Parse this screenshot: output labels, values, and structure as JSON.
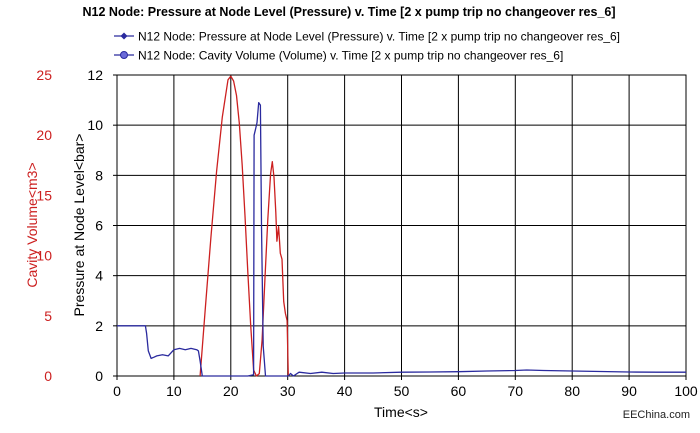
{
  "chart_data": {
    "type": "line",
    "title": "N12 Node: Pressure at Node Level (Pressure) v. Time [2 x pump trip no changeover res_6]",
    "xlabel": "Time<s>",
    "xlim": [
      0,
      100
    ],
    "x_ticks": [
      0,
      10,
      20,
      30,
      40,
      50,
      60,
      70,
      80,
      90,
      100
    ],
    "y_axes": {
      "primary": {
        "label": "Pressure at Node Level<bar>",
        "ylim": [
          0,
          12
        ],
        "ticks": [
          0,
          2,
          4,
          6,
          8,
          10,
          12
        ],
        "color": "#1e2280"
      },
      "secondary": {
        "label": "Cavity Volume<m3>",
        "ylim": [
          0,
          25
        ],
        "ticks": [
          0,
          5,
          10,
          15,
          20,
          25
        ],
        "color": "#cc2020"
      }
    },
    "grid": true,
    "legend_position": "top",
    "series": [
      {
        "name": "N12 Node: Pressure at Node Level (Pressure) v. Time [2 x pump trip no changeover res_6]",
        "axis": "primary",
        "color": "#2a2a9e",
        "marker": "diamond",
        "x": [
          0,
          5,
          5.2,
          5.5,
          6,
          6.5,
          7,
          8,
          9,
          10,
          11,
          12,
          13,
          14,
          14.3,
          14.6,
          15,
          17,
          19,
          21,
          23,
          24,
          24.1,
          24.3,
          24.6,
          24.9,
          25.2,
          25.4,
          25.7,
          26.1,
          26.5,
          27,
          28,
          28.5,
          29,
          29.3,
          29.6,
          29.9,
          30.1,
          30.5,
          31,
          32,
          34,
          36,
          38,
          40,
          45,
          50,
          55,
          60,
          65,
          70,
          72,
          75,
          80,
          85,
          90,
          95,
          100
        ],
        "values": [
          2.0,
          2.0,
          1.7,
          1.0,
          0.7,
          0.75,
          0.8,
          0.85,
          0.8,
          1.05,
          1.1,
          1.05,
          1.1,
          1.05,
          1.0,
          0.6,
          0.0,
          0.0,
          0.0,
          0.0,
          0.0,
          0.05,
          9.6,
          9.8,
          10.1,
          10.9,
          10.8,
          6.0,
          1.2,
          0.0,
          0.0,
          0.0,
          0.0,
          0.0,
          0.0,
          0.0,
          0.0,
          0.0,
          0.0,
          0.1,
          0.0,
          0.15,
          0.1,
          0.15,
          0.1,
          0.12,
          0.12,
          0.15,
          0.16,
          0.17,
          0.2,
          0.22,
          0.24,
          0.22,
          0.2,
          0.18,
          0.16,
          0.15,
          0.15
        ]
      },
      {
        "name": "N12 Node: Cavity Volume (Volume) v. Time [2 x pump trip no changeover res_6]",
        "axis": "secondary",
        "color": "#cc2020",
        "marker": "circle",
        "x": [
          14.6,
          15.5,
          16.5,
          17.5,
          18.5,
          19.5,
          20,
          20.5,
          21,
          21.5,
          22,
          22.5,
          23,
          23.5,
          24,
          24.5,
          25,
          25.5,
          26,
          26.5,
          27,
          27.3,
          27.6,
          27.9,
          28.1,
          28.4,
          28.7,
          29,
          29.3,
          29.6,
          29.9,
          30.1
        ],
        "values": [
          0,
          5.5,
          11.5,
          17,
          21.5,
          24.6,
          24.9,
          24.5,
          23.3,
          21,
          17.5,
          13.3,
          8.5,
          4.2,
          0.5,
          0,
          0.2,
          3,
          8,
          13,
          16.8,
          17.8,
          16.5,
          13.6,
          11.2,
          12.4,
          10.2,
          9.7,
          6.2,
          5.2,
          4.6,
          0
        ]
      }
    ],
    "watermark": "EEChina.com"
  }
}
